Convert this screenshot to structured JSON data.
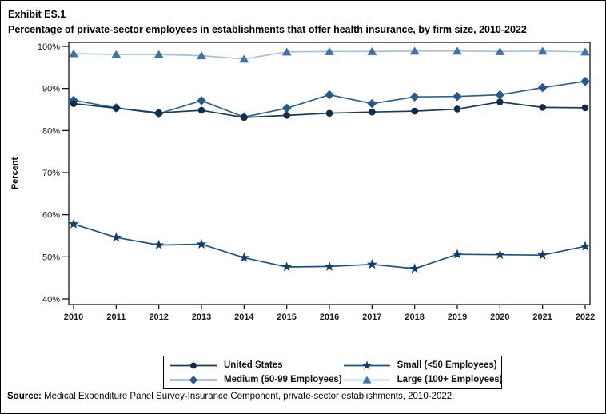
{
  "header": {
    "exhibit": "Exhibit ES.1",
    "title": "Percentage of private-sector employees in establishments that offer health insurance, by firm size, 2010-2022"
  },
  "chart_data": {
    "type": "line",
    "title": "Percentage of private-sector employees in establishments that offer health insurance, by firm size, 2010-2022",
    "xlabel": "",
    "ylabel": "Percent",
    "ylim": [
      40,
      100
    ],
    "ytick_values": [
      40,
      50,
      60,
      70,
      80,
      90,
      100
    ],
    "ytick_suffix": "%",
    "grid": false,
    "legend_position": "bottom",
    "x": [
      2010,
      2011,
      2012,
      2013,
      2014,
      2015,
      2016,
      2017,
      2018,
      2019,
      2020,
      2021,
      2022
    ],
    "series": [
      {
        "name": "United States",
        "marker": "circle",
        "line_color": "#1b3a58",
        "marker_color": "#0f2c4c",
        "values": [
          86.4,
          85.3,
          84.2,
          84.8,
          83.1,
          83.6,
          84.1,
          84.4,
          84.6,
          85.1,
          86.8,
          85.5,
          85.4
        ]
      },
      {
        "name": "Medium (50-99 Employees)",
        "marker": "diamond",
        "line_color": "#2e6292",
        "marker_color": "#27598a",
        "values": [
          87.2,
          85.4,
          84.0,
          87.1,
          83.2,
          85.3,
          88.5,
          86.4,
          88.0,
          88.1,
          88.5,
          90.2,
          91.7
        ]
      },
      {
        "name": "Small (<50 Employees)",
        "marker": "star",
        "line_color": "#1e5380",
        "marker_color": "#133e6c",
        "values": [
          57.8,
          54.6,
          52.8,
          53.0,
          49.8,
          47.6,
          47.7,
          48.2,
          47.2,
          50.6,
          50.5,
          50.4,
          52.5
        ]
      },
      {
        "name": "Large (100+ Employees)",
        "marker": "triangle",
        "line_color": "#a7bfd8",
        "marker_color": "#3e73a7",
        "values": [
          98.3,
          98.1,
          98.1,
          97.8,
          97.0,
          98.7,
          98.8,
          98.8,
          98.9,
          98.9,
          98.8,
          98.9,
          98.7
        ]
      }
    ]
  },
  "footer": {
    "source_label": "Source:",
    "source_text": " Medical Expenditure Panel Survey-Insurance Component, private-sector establishments, 2010-2022."
  }
}
